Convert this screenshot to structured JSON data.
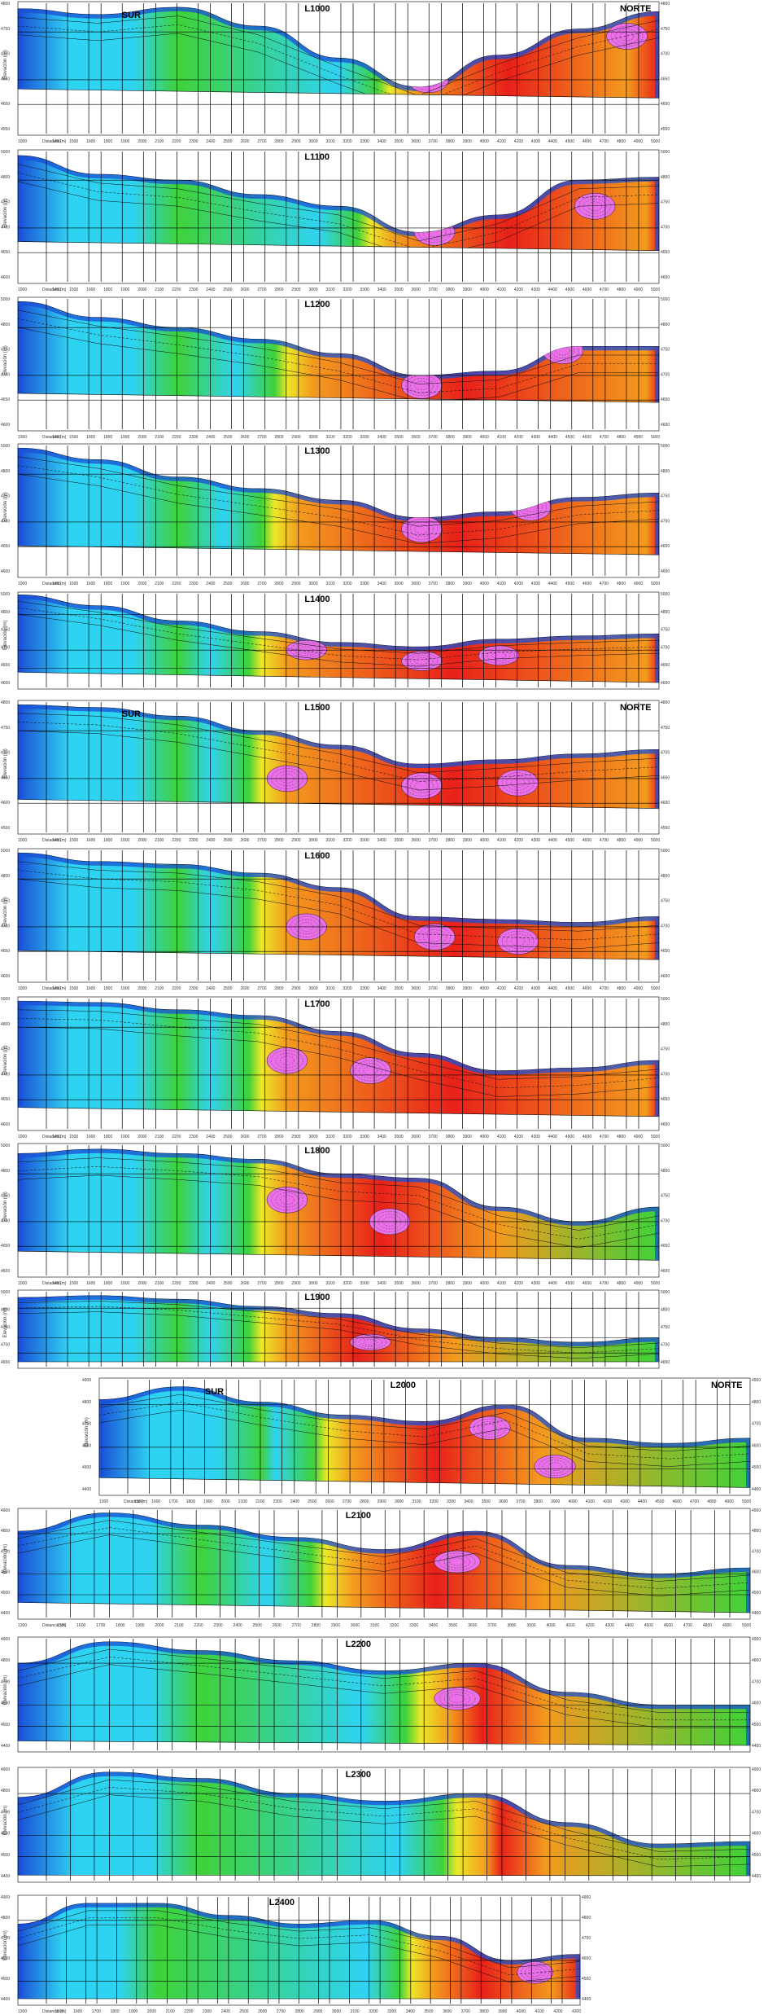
{
  "figure": {
    "south_label": "SUR",
    "north_label": "NORTE",
    "y_axis_label": "Elevación (m)",
    "x_axis_label": "Distancia (m)",
    "colors": {
      "blue": "#1a4fd6",
      "cyan": "#2fd3f2",
      "green": "#3fd23a",
      "yellow": "#ece827",
      "orange": "#f39a1e",
      "red": "#e8211a",
      "magenta": "#ea6fe8"
    }
  },
  "sections": [
    {
      "id": "L1000",
      "title": "L1000",
      "south": true,
      "north": true,
      "x_ticks": [
        "1000",
        "1300",
        "1400",
        "1500",
        "1600",
        "1800",
        "1900",
        "2000",
        "2100",
        "2200",
        "2300",
        "2400",
        "2500",
        "2600",
        "2700",
        "2800",
        "2900",
        "3000",
        "3100",
        "3200",
        "3300",
        "3400",
        "3500",
        "3600",
        "3700",
        "3800",
        "3900",
        "4000",
        "4100",
        "4200",
        "4300",
        "4400",
        "4500",
        "4600",
        "4700",
        "4800",
        "4900",
        "5000"
      ],
      "y_left": [
        "4800",
        "4750",
        "4700",
        "4650",
        "4600",
        "4550"
      ],
      "y_right": [
        "4800",
        "4750",
        "4700",
        "4650",
        "4600",
        "4550"
      ]
    },
    {
      "id": "L1100",
      "title": "L1100",
      "south": false,
      "north": false,
      "x_ticks": [
        "1000",
        "1300",
        "1400",
        "1500",
        "1600",
        "1800",
        "1900",
        "2000",
        "2100",
        "2200",
        "2300",
        "2400",
        "2500",
        "2600",
        "2700",
        "2800",
        "2900",
        "3000",
        "3100",
        "3200",
        "3300",
        "3400",
        "3500",
        "3600",
        "3700",
        "3800",
        "3900",
        "4000",
        "4100",
        "4200",
        "4300",
        "4400",
        "4500",
        "4600",
        "4700",
        "4800",
        "4900",
        "5000"
      ],
      "y_left": [
        "5000",
        "4800",
        "4750",
        "4700",
        "4650",
        "4600"
      ],
      "y_right": [
        "5000",
        "4800",
        "4750",
        "4700",
        "4650",
        "4600"
      ]
    },
    {
      "id": "L1200",
      "title": "L1200",
      "south": false,
      "north": false,
      "x_ticks": [
        "1000",
        "1300",
        "1400",
        "1500",
        "1600",
        "1800",
        "1900",
        "2000",
        "2100",
        "2200",
        "2300",
        "2400",
        "2500",
        "2600",
        "2700",
        "2800",
        "2900",
        "3000",
        "3100",
        "3200",
        "3300",
        "3400",
        "3500",
        "3600",
        "3700",
        "3800",
        "3900",
        "4000",
        "4100",
        "4200",
        "4300",
        "4400",
        "4500",
        "4600",
        "4700",
        "4800",
        "4900",
        "5000"
      ],
      "y_left": [
        "5000",
        "4800",
        "4750",
        "4700",
        "4650",
        "4600"
      ],
      "y_right": [
        "5000",
        "4800",
        "4750",
        "4700",
        "4650",
        "4600"
      ]
    },
    {
      "id": "L1300",
      "title": "L1300",
      "south": false,
      "north": false,
      "x_ticks": [
        "1000",
        "1300",
        "1400",
        "1500",
        "1600",
        "1800",
        "1900",
        "2000",
        "2100",
        "2200",
        "2300",
        "2400",
        "2500",
        "2600",
        "2700",
        "2800",
        "2900",
        "3000",
        "3100",
        "3200",
        "3300",
        "3400",
        "3500",
        "3600",
        "3700",
        "3800",
        "3900",
        "4000",
        "4100",
        "4200",
        "4300",
        "4400",
        "4500",
        "4600",
        "4700",
        "4800",
        "4900",
        "5000"
      ],
      "y_left": [
        "5000",
        "4800",
        "4750",
        "4700",
        "4650",
        "4600"
      ],
      "y_right": [
        "5000",
        "4800",
        "4750",
        "4700",
        "4650",
        "4600"
      ]
    },
    {
      "id": "L1400",
      "title": "L1400",
      "south": false,
      "north": false,
      "x_ticks": [],
      "y_left": [
        "5000",
        "4800",
        "4750",
        "4700",
        "4650",
        "4600"
      ],
      "y_right": [
        "5000",
        "4800",
        "4750",
        "4700",
        "4650",
        "4600"
      ]
    },
    {
      "id": "L1500",
      "title": "L1500",
      "south": true,
      "north": true,
      "x_ticks": [
        "1000",
        "1300",
        "1400",
        "1500",
        "1600",
        "1800",
        "1900",
        "2000",
        "2100",
        "2200",
        "2300",
        "2400",
        "2500",
        "2600",
        "2700",
        "2800",
        "2900",
        "3000",
        "3100",
        "3200",
        "3300",
        "3400",
        "3500",
        "3600",
        "3700",
        "3800",
        "3900",
        "4000",
        "4100",
        "4200",
        "4300",
        "4400",
        "4500",
        "4600",
        "4700",
        "4800",
        "4900",
        "5000"
      ],
      "y_left": [
        "4800",
        "4750",
        "4700",
        "4650",
        "4600",
        "4550"
      ],
      "y_right": [
        "4800",
        "4750",
        "4700",
        "4650",
        "4600",
        "4550"
      ]
    },
    {
      "id": "L1600",
      "title": "L1600",
      "south": false,
      "north": false,
      "x_ticks": [
        "1000",
        "1300",
        "1400",
        "1500",
        "1600",
        "1800",
        "1900",
        "2000",
        "2100",
        "2200",
        "2300",
        "2400",
        "2500",
        "2600",
        "2700",
        "2800",
        "2900",
        "3000",
        "3100",
        "3200",
        "3300",
        "3400",
        "3500",
        "3600",
        "3700",
        "3800",
        "3900",
        "4000",
        "4100",
        "4200",
        "4300",
        "4400",
        "4500",
        "4600",
        "4700",
        "4800",
        "4900",
        "5000"
      ],
      "y_left": [
        "5000",
        "4800",
        "4750",
        "4700",
        "4650",
        "4600"
      ],
      "y_right": [
        "5000",
        "4800",
        "4750",
        "4700",
        "4650",
        "4600"
      ]
    },
    {
      "id": "L1700",
      "title": "L1700",
      "south": false,
      "north": false,
      "x_ticks": [
        "1000",
        "1300",
        "1400",
        "1500",
        "1600",
        "1800",
        "1900",
        "2000",
        "2100",
        "2200",
        "2300",
        "2400",
        "2500",
        "2600",
        "2700",
        "2800",
        "2900",
        "3000",
        "3100",
        "3200",
        "3300",
        "3400",
        "3500",
        "3600",
        "3700",
        "3800",
        "3900",
        "4000",
        "4100",
        "4200",
        "4300",
        "4400",
        "4500",
        "4600",
        "4700",
        "4800",
        "4900",
        "5000"
      ],
      "y_left": [
        "5000",
        "4800",
        "4750",
        "4700",
        "4650",
        "4600"
      ],
      "y_right": [
        "5000",
        "4800",
        "4750",
        "4700",
        "4650",
        "4600"
      ]
    },
    {
      "id": "L1800",
      "title": "L1800",
      "south": false,
      "north": false,
      "x_ticks": [
        "1000",
        "1300",
        "1400",
        "1500",
        "1600",
        "1800",
        "1900",
        "2000",
        "2100",
        "2200",
        "2300",
        "2400",
        "2500",
        "2600",
        "2700",
        "2800",
        "2900",
        "3000",
        "3100",
        "3200",
        "3300",
        "3400",
        "3500",
        "3600",
        "3700",
        "3800",
        "3900",
        "4000",
        "4100",
        "4200",
        "4300",
        "4400",
        "4500",
        "4600",
        "4700",
        "4800",
        "4900",
        "5000"
      ],
      "y_left": [
        "5000",
        "4800",
        "4750",
        "4700",
        "4650",
        "4600"
      ],
      "y_right": [
        "5000",
        "4800",
        "4750",
        "4700",
        "4650",
        "4600"
      ]
    },
    {
      "id": "L1900",
      "title": "L1900",
      "south": false,
      "north": false,
      "x_ticks": [],
      "y_left": [
        "5000",
        "4800",
        "4750",
        "4700",
        "4650"
      ],
      "y_right": [
        "5000",
        "4800",
        "4750",
        "4700",
        "4650"
      ]
    },
    {
      "id": "L2000",
      "title": "L2000",
      "south": true,
      "north": true,
      "x_ticks": [
        "1300",
        "1400",
        "1500",
        "1600",
        "1700",
        "1800",
        "1900",
        "2000",
        "2100",
        "2200",
        "2300",
        "2400",
        "2500",
        "2600",
        "2700",
        "2800",
        "2900",
        "3000",
        "3100",
        "3200",
        "3300",
        "3400",
        "3500",
        "3600",
        "3700",
        "3800",
        "3900",
        "4000",
        "4100",
        "4200",
        "4300",
        "4400",
        "4500",
        "4600",
        "4700",
        "4800",
        "4900",
        "5000"
      ],
      "y_left": [
        "4900",
        "4800",
        "4700",
        "4600",
        "4500",
        "4400"
      ],
      "y_right": [
        "4900",
        "4800",
        "4700",
        "4600",
        "4500",
        "4400"
      ]
    },
    {
      "id": "L2100",
      "title": "L2100",
      "south": false,
      "north": false,
      "x_ticks": [
        "1300",
        "1400",
        "1500",
        "1600",
        "1700",
        "1800",
        "1900",
        "2000",
        "2100",
        "2200",
        "2300",
        "2400",
        "2500",
        "2600",
        "2700",
        "2800",
        "2900",
        "3000",
        "3100",
        "3200",
        "3300",
        "3400",
        "3500",
        "3600",
        "3700",
        "3800",
        "3900",
        "4000",
        "4100",
        "4200",
        "4300",
        "4400",
        "4500",
        "4600",
        "4700",
        "4800",
        "4900",
        "5000"
      ],
      "y_left": [
        "4900",
        "4800",
        "4700",
        "4600",
        "4500",
        "4400"
      ],
      "y_right": [
        "4900",
        "4800",
        "4700",
        "4600",
        "4500",
        "4400"
      ]
    },
    {
      "id": "L2200",
      "title": "L2200",
      "south": false,
      "north": false,
      "x_ticks": [],
      "y_left": [
        "4900",
        "4800",
        "4700",
        "4600",
        "4500",
        "4400"
      ],
      "y_right": [
        "4900",
        "4800",
        "4700",
        "4600",
        "4500",
        "4400"
      ]
    },
    {
      "id": "L2300",
      "title": "L2300",
      "south": false,
      "north": false,
      "x_ticks": [],
      "y_left": [
        "4900",
        "4800",
        "4700",
        "4600",
        "4500",
        "4400"
      ],
      "y_right": [
        "4900",
        "4800",
        "4700",
        "4600",
        "4500",
        "4400"
      ]
    },
    {
      "id": "L2400",
      "title": "L2400",
      "south": false,
      "north": false,
      "x_ticks": [
        "1300",
        "1400",
        "1500",
        "1600",
        "1700",
        "1800",
        "1900",
        "2000",
        "2100",
        "2200",
        "2300",
        "2400",
        "2500",
        "2600",
        "2700",
        "2800",
        "2900",
        "3000",
        "3100",
        "3200",
        "3300",
        "3400",
        "3500",
        "3600",
        "3700",
        "3800",
        "3900",
        "4000",
        "4100",
        "4200",
        "4300"
      ],
      "y_left": [
        "4900",
        "4800",
        "4700",
        "4600",
        "4500",
        "4400"
      ],
      "y_right": [
        "4900",
        "4800",
        "4700",
        "4600",
        "4500",
        "4400"
      ]
    }
  ]
}
